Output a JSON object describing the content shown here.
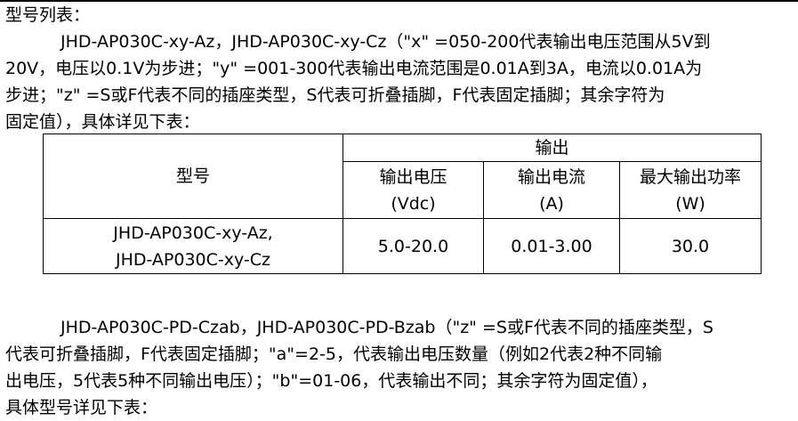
{
  "heading": "型号列表：",
  "para1": [
    "JHD-AP030C-xy-Az，JHD-AP030C-xy-Cz（\"x\" =050-200代表输出电压范围从5V到",
    "20V，电压以0.1V为步进；\"y\" =001-300代表输出电流范围是0.01A到3A，电流以0.01A为",
    "步进；\"z\" =S或F代表不同的插座类型，S代表可折叠插脚，F代表固定插脚；其余字符为",
    "固定值），具体详见下表："
  ],
  "table": {
    "model_header": "型号",
    "output_header": "输出",
    "columns": [
      {
        "line1": "输出电压",
        "line2": "(Vdc)"
      },
      {
        "line1": "输出电流",
        "line2": "(A)"
      },
      {
        "line1": "最大输出功率",
        "line2": "(W)"
      }
    ],
    "rows": [
      {
        "model_line1": "JHD-AP030C-xy-Az,",
        "model_line2": "JHD-AP030C-xy-Cz",
        "voltage": "5.0-20.0",
        "current": "0.01-3.00",
        "power": "30.0"
      }
    ]
  },
  "para2": [
    "JHD-AP030C-PD-Czab，JHD-AP030C-PD-Bzab（\"z\" =S或F代表不同的插座类型，S",
    "代表可折叠插脚，F代表固定插脚；\"a\"=2-5，代表输出电压数量（例如2代表2种不同输",
    "出电压，5代表5种不同输出电压）；\"b\"=01-06，代表输出不同；其余字符为固定值），",
    "具体型号详见下表："
  ]
}
